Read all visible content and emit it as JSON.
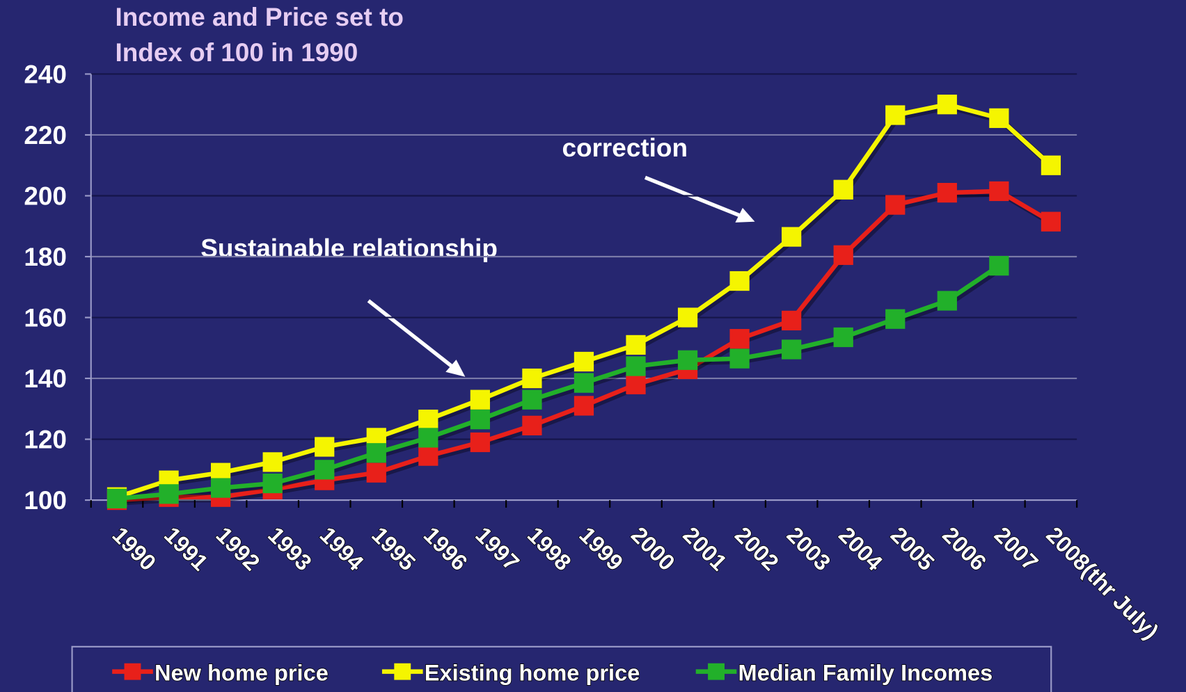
{
  "chart_data": {
    "type": "line",
    "title": [
      "Income and Price set to",
      "Index of 100 in 1990"
    ],
    "categories": [
      "1990",
      "1991",
      "1992",
      "1993",
      "1994",
      "1995",
      "1996",
      "1997",
      "1998",
      "1999",
      "2000",
      "2001",
      "2002",
      "2003",
      "2004",
      "2005",
      "2006",
      "2007",
      "2008(thr July)"
    ],
    "series": [
      {
        "name": "New home price",
        "color": "#e8201a",
        "values": [
          100,
          101,
          101,
          103.5,
          106.5,
          109,
          114.5,
          119,
          124.5,
          131,
          138,
          143,
          153,
          159,
          180.5,
          197,
          201,
          201.5,
          191.5
        ]
      },
      {
        "name": "Existing home price",
        "color": "#f5f500",
        "values": [
          101,
          106.5,
          109,
          112.5,
          117.5,
          120.5,
          126.5,
          133,
          140,
          145.5,
          151,
          160,
          172,
          186.5,
          202,
          226.5,
          230,
          225.5,
          210
        ]
      },
      {
        "name": "Median Family Incomes",
        "color": "#22b02a",
        "values": [
          100.5,
          102,
          104,
          105.5,
          110,
          115.5,
          120.5,
          126.5,
          133,
          138.5,
          144,
          146,
          146.5,
          149.5,
          153.5,
          159.5,
          165.5,
          177,
          null
        ]
      }
    ],
    "annotations": [
      "correction",
      "Sustainable relationship"
    ],
    "ylim": [
      100,
      240
    ],
    "yticks": [
      100,
      120,
      140,
      160,
      180,
      200,
      220,
      240
    ],
    "grid": true
  }
}
